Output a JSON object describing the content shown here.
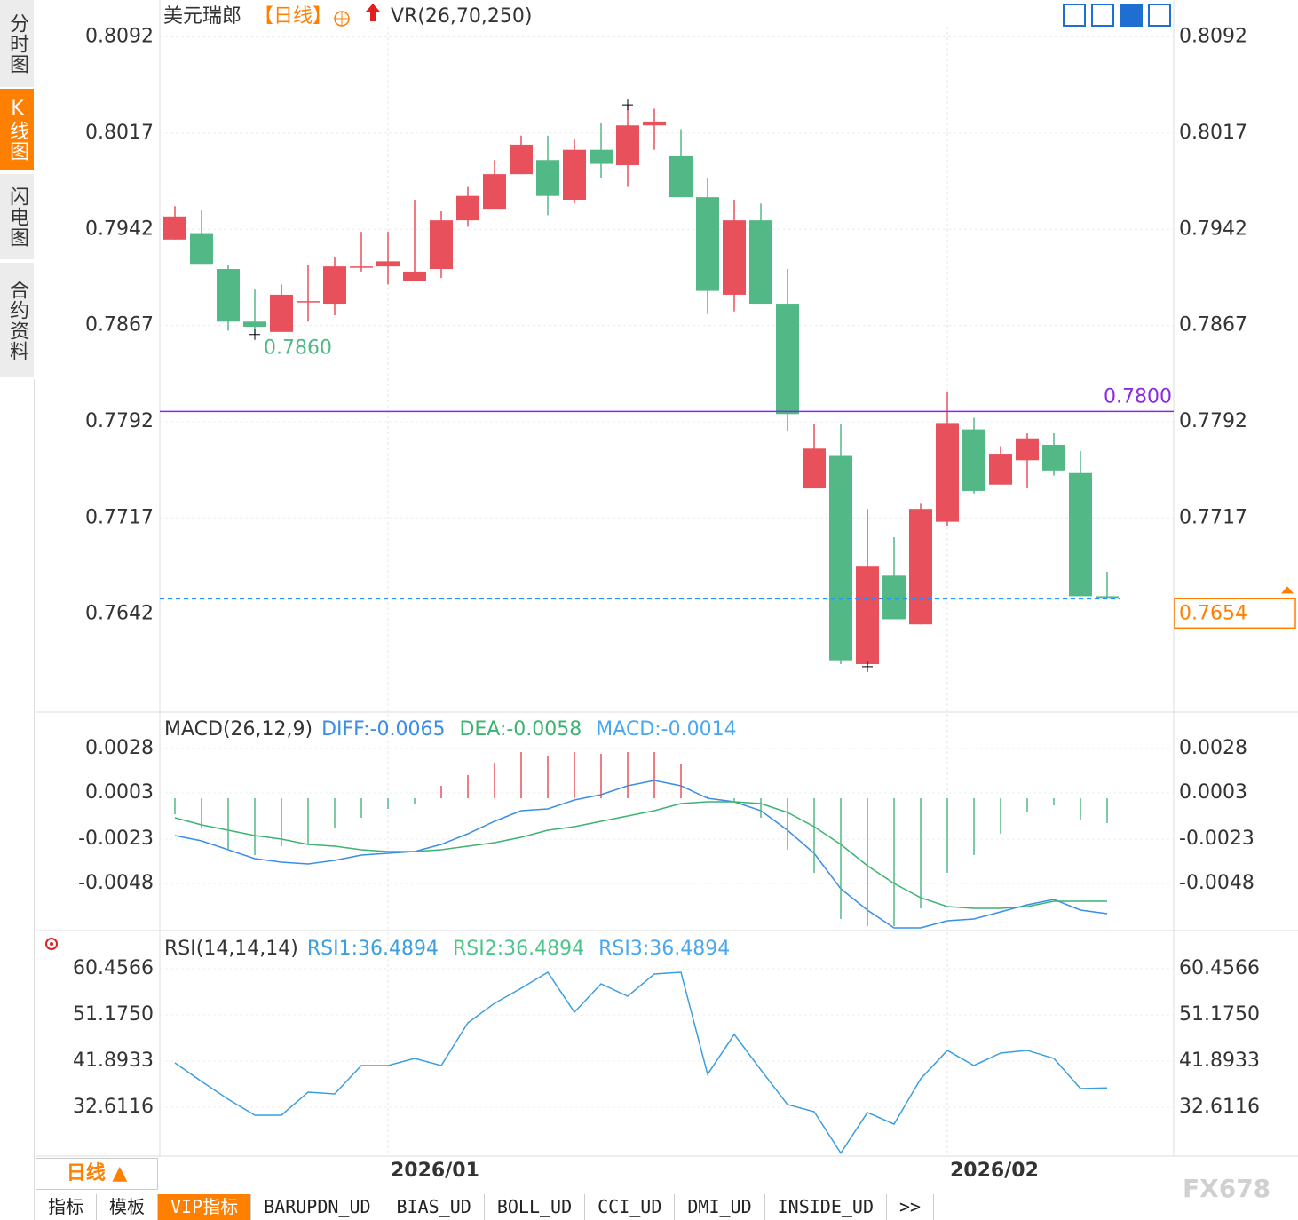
{
  "sidebar": [
    "分时图",
    "K线图",
    "闪电图",
    "合约资料"
  ],
  "period_button": "日线 ▲",
  "tabs": [
    "指标",
    "模板",
    "VIP指标",
    "BARUPDN_UD",
    "BIAS_UD",
    "BOLL_UD",
    "CCI_UD",
    "DMI_UD",
    "INSIDE_UD",
    ">>"
  ],
  "watermark": "FX678",
  "chart_data": [
    {
      "type": "candlestick",
      "title": "美元瑞郎",
      "period": "【日线】",
      "indicator": "VR(26,70,250)",
      "categories": [
        null,
        null,
        null,
        null,
        null,
        null,
        null,
        null,
        "2026/01",
        null,
        null,
        null,
        null,
        null,
        null,
        null,
        null,
        null,
        null,
        null,
        null,
        null,
        null,
        null,
        null,
        null,
        null,
        null,
        null,
        "2026/02",
        null,
        null,
        null,
        null,
        null,
        null
      ],
      "open": [
        0.7934,
        0.7939,
        0.7911,
        0.787,
        0.7862,
        0.7885,
        0.7884,
        0.7912,
        0.7913,
        0.7902,
        0.7911,
        0.7949,
        0.7958,
        0.7985,
        0.7996,
        0.7965,
        0.8004,
        0.7992,
        0.8023,
        0.7999,
        0.7967,
        0.7891,
        0.7949,
        0.7884,
        0.774,
        0.7766,
        0.7603,
        0.7672,
        0.7634,
        0.7714,
        0.7786,
        0.7743,
        0.7762,
        0.7774,
        0.7752,
        0.7656
      ],
      "high": [
        0.796,
        0.7957,
        0.7914,
        0.7895,
        0.7899,
        0.7914,
        0.792,
        0.794,
        0.794,
        0.7965,
        0.7956,
        0.7975,
        0.7996,
        0.8015,
        0.8015,
        0.8012,
        0.8025,
        0.8039,
        0.8036,
        0.802,
        0.7982,
        0.7965,
        0.7962,
        0.7911,
        0.779,
        0.779,
        0.7724,
        0.7702,
        0.7728,
        0.7815,
        0.7795,
        0.7773,
        0.7783,
        0.7783,
        0.7769,
        0.7675
      ],
      "low": [
        0.7934,
        0.7915,
        0.7863,
        0.786,
        0.7862,
        0.787,
        0.7875,
        0.7909,
        0.7899,
        0.7902,
        0.7904,
        0.7944,
        0.7958,
        0.7985,
        0.7953,
        0.7962,
        0.7982,
        0.7975,
        0.8004,
        0.7967,
        0.7876,
        0.7878,
        0.7884,
        0.7785,
        0.774,
        0.7603,
        0.7601,
        0.7638,
        0.7634,
        0.7711,
        0.7736,
        0.7743,
        0.774,
        0.775,
        0.7656,
        0.7654
      ],
      "close": [
        0.7952,
        0.7915,
        0.787,
        0.7866,
        0.7891,
        0.7886,
        0.7913,
        0.7913,
        0.7917,
        0.7909,
        0.7949,
        0.7968,
        0.7985,
        0.8008,
        0.7968,
        0.8004,
        0.7993,
        0.8023,
        0.8026,
        0.7967,
        0.7894,
        0.7949,
        0.7884,
        0.7798,
        0.7771,
        0.7606,
        0.7679,
        0.7638,
        0.7724,
        0.7791,
        0.7738,
        0.7767,
        0.7779,
        0.7754,
        0.7656,
        0.7654
      ],
      "up_color": "#e8505b",
      "down_color": "#52b986",
      "ylim": [
        0.7567,
        0.81
      ],
      "yticks": [
        0.8092,
        0.8017,
        0.7942,
        0.7867,
        0.7792,
        0.7717,
        0.7642
      ],
      "grid": true,
      "annotations": [
        {
          "value": 0.8039,
          "at": "high",
          "color": "#e8505b"
        },
        {
          "value": 0.786,
          "label": "0.7860",
          "at": "low",
          "color": "#52b986"
        },
        {
          "value": 0.7601,
          "at": "low",
          "color": "#52b986"
        }
      ],
      "hline": {
        "value": 0.78,
        "label": "0.7800",
        "color": "#8a2be2"
      },
      "last_price": {
        "value": 0.7654,
        "color": "#ff7f00",
        "line_color": "#1e90ff"
      }
    },
    {
      "type": "macd",
      "title": "MACD(26,12,9)",
      "series": [
        {
          "name": "DIFF:-0.0065",
          "color": "#3a8ee6",
          "style": "line",
          "values": [
            -0.0021,
            -0.0024,
            -0.0029,
            -0.0034,
            -0.0036,
            -0.0037,
            -0.0035,
            -0.0032,
            -0.0031,
            -0.003,
            -0.0026,
            -0.002,
            -0.0013,
            -0.0007,
            -0.0006,
            -0.0001,
            0.0002,
            0.0007,
            0.001,
            0.0007,
            0.0,
            -0.0002,
            -0.0007,
            -0.0018,
            -0.0031,
            -0.0051,
            -0.0063,
            -0.0073,
            -0.0073,
            -0.0069,
            -0.0068,
            -0.0064,
            -0.006,
            -0.0057,
            -0.0063,
            -0.0065
          ]
        },
        {
          "name": "DEA:-0.0058",
          "color": "#3cb371",
          "style": "line",
          "values": [
            -0.0011,
            -0.0015,
            -0.0018,
            -0.0021,
            -0.0023,
            -0.0026,
            -0.0027,
            -0.0029,
            -0.003,
            -0.003,
            -0.0029,
            -0.0027,
            -0.0025,
            -0.0022,
            -0.0018,
            -0.0016,
            -0.0013,
            -0.001,
            -0.0007,
            -0.0003,
            -0.0002,
            -0.0002,
            -0.0003,
            -0.0008,
            -0.0016,
            -0.0026,
            -0.0038,
            -0.0048,
            -0.0056,
            -0.0061,
            -0.0062,
            -0.0062,
            -0.0061,
            -0.0058,
            -0.0058,
            -0.0058
          ]
        },
        {
          "name": "MACD:-0.0014",
          "color": "#4aa8f0",
          "style": "histogram",
          "values": [
            -0.0009,
            -0.0017,
            -0.0029,
            -0.0032,
            -0.0027,
            -0.0026,
            -0.0017,
            -0.0011,
            -0.0006,
            -0.0003,
            0.0007,
            0.0013,
            0.002,
            0.0026,
            0.0024,
            0.0026,
            0.0025,
            0.0026,
            0.0026,
            0.0019,
            0.0001,
            -0.0002,
            -0.0011,
            -0.0029,
            -0.0042,
            -0.0068,
            -0.0072,
            -0.0072,
            -0.0062,
            -0.0042,
            -0.0032,
            -0.002,
            -0.0008,
            -0.0004,
            -0.0012,
            -0.0014
          ]
        }
      ],
      "up_color": "#e8505b",
      "down_color": "#52b986",
      "ylim": [
        -0.0074,
        0.0047
      ],
      "yticks": [
        0.0028,
        0.0003,
        -0.0023,
        -0.0048
      ]
    },
    {
      "type": "line",
      "title": "RSI(14,14,14)",
      "series": [
        {
          "name": "RSI1:36.4894",
          "color": "#3a9ee0",
          "values": [
            41.54,
            37.79,
            34.22,
            31.01,
            31.01,
            35.65,
            35.29,
            41.0,
            41.0,
            42.43,
            41.0,
            49.57,
            53.5,
            56.53,
            59.74,
            51.71,
            57.42,
            54.92,
            59.39,
            59.74,
            39.22,
            47.25,
            40.11,
            33.15,
            31.72,
            23.4,
            31.54,
            29.22,
            38.32,
            44.04,
            41.0,
            43.5,
            44.04,
            42.43,
            36.36,
            36.49
          ]
        },
        {
          "name": "RSI2:36.4894",
          "color": "#4cc48a"
        },
        {
          "name": "RSI3:36.4894",
          "color": "#4aa8f0"
        }
      ],
      "ylim": [
        23.15,
        67.77
      ],
      "yticks": [
        60.4566,
        {
          "value": 51.175,
          "label": "51.1750"
        },
        41.8933,
        32.6116
      ]
    }
  ]
}
